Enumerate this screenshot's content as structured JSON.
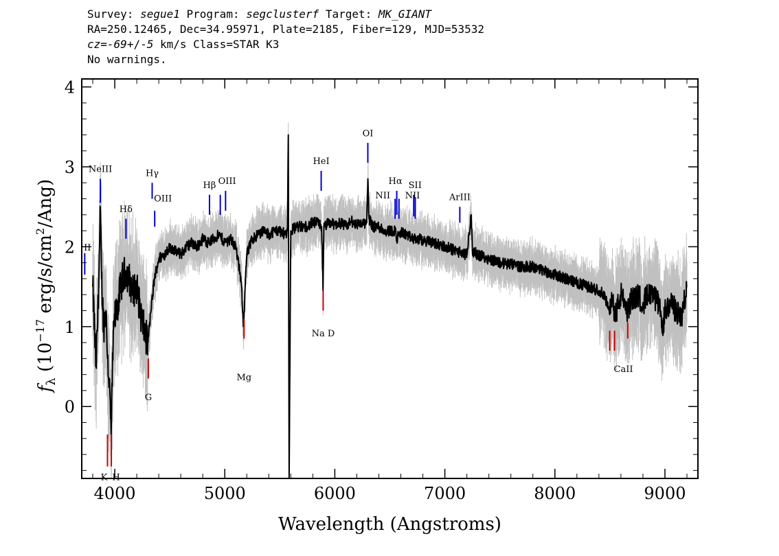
{
  "header": {
    "line1": {
      "survey_label": "Survey:",
      "survey_value": "segue1",
      "program_label": "Program:",
      "program_value": "segclusterf",
      "target_label": "Target:",
      "target_value": "MK_GIANT"
    },
    "line2": "RA=250.12465, Dec=34.95971, Plate=2185, Fiber=129, MJD=53532",
    "line3": {
      "cz_label": "cz=",
      "cz_value": "-69",
      "cz_pm": "+/-",
      "cz_err": "5",
      "cz_rest": " km/s Class=STAR K3"
    },
    "line4": "No warnings."
  },
  "chart_data": {
    "type": "line",
    "xlabel": "Wavelength (Angstroms)",
    "ylabel": "f_λ (10^-17 erg/s/cm^2/Ang)",
    "xlim": [
      3700,
      9300
    ],
    "ylim": [
      -0.9,
      4.1
    ],
    "x_ticks": [
      4000,
      5000,
      6000,
      7000,
      8000,
      9000
    ],
    "y_ticks": [
      0,
      1,
      2,
      3,
      4
    ],
    "series": [
      {
        "role": "flux",
        "color": "#000000",
        "x": [
          3800,
          3830,
          3850,
          3870,
          3880,
          3900,
          3920,
          3935,
          3950,
          3968,
          3985,
          4000,
          4030,
          4060,
          4100,
          4130,
          4160,
          4200,
          4230,
          4260,
          4300,
          4330,
          4360,
          4400,
          4450,
          4500,
          4550,
          4600,
          4650,
          4700,
          4750,
          4800,
          4850,
          4900,
          4950,
          5000,
          5050,
          5100,
          5150,
          5170,
          5185,
          5200,
          5250,
          5300,
          5350,
          5400,
          5450,
          5500,
          5550,
          5570,
          5577,
          5585,
          5600,
          5650,
          5700,
          5750,
          5800,
          5850,
          5880,
          5893,
          5900,
          5950,
          6000,
          6050,
          6100,
          6150,
          6200,
          6250,
          6290,
          6300,
          6310,
          6350,
          6400,
          6450,
          6500,
          6550,
          6563,
          6600,
          6650,
          6700,
          6750,
          6800,
          6900,
          7000,
          7100,
          7200,
          7240,
          7250,
          7300,
          7400,
          7500,
          7600,
          7700,
          7800,
          7900,
          8000,
          8100,
          8200,
          8300,
          8400,
          8450,
          8498,
          8530,
          8542,
          8600,
          8662,
          8700,
          8750,
          8800,
          8850,
          8900,
          8950,
          8980,
          9000,
          9050,
          9100,
          9150,
          9200
        ],
        "y": [
          1.5,
          0.5,
          1.3,
          2.45,
          1.6,
          1.0,
          1.2,
          0.6,
          0.3,
          -0.35,
          0.8,
          1.1,
          1.3,
          1.55,
          1.7,
          1.6,
          1.45,
          1.5,
          1.2,
          1.0,
          0.8,
          1.2,
          1.6,
          1.85,
          1.9,
          2.0,
          1.95,
          1.9,
          2.0,
          2.05,
          2.0,
          2.1,
          2.05,
          2.1,
          2.15,
          2.05,
          2.1,
          2.0,
          1.55,
          1.0,
          1.5,
          1.9,
          2.1,
          2.15,
          2.2,
          2.15,
          2.2,
          2.2,
          2.15,
          2.2,
          3.4,
          -0.9,
          2.2,
          2.25,
          2.25,
          2.25,
          2.3,
          2.3,
          2.25,
          1.45,
          2.25,
          2.3,
          2.28,
          2.3,
          2.25,
          2.32,
          2.28,
          2.3,
          2.3,
          2.85,
          2.35,
          2.25,
          2.25,
          2.2,
          2.2,
          2.2,
          2.1,
          2.18,
          2.15,
          2.1,
          2.1,
          2.08,
          2.05,
          2.0,
          1.95,
          1.9,
          2.4,
          1.95,
          1.9,
          1.85,
          1.8,
          1.78,
          1.75,
          1.75,
          1.7,
          1.65,
          1.6,
          1.55,
          1.5,
          1.45,
          1.4,
          1.15,
          1.4,
          1.1,
          1.4,
          1.2,
          1.35,
          1.4,
          1.3,
          1.4,
          1.35,
          1.3,
          0.9,
          1.2,
          1.3,
          1.2,
          1.1,
          1.5
        ]
      }
    ],
    "line_labels": [
      {
        "label": "II",
        "group": "emission",
        "x": 3727,
        "color": "#0000cc"
      },
      {
        "label": "NeIII",
        "group": "emission",
        "x": 3869,
        "color": "#0000cc"
      },
      {
        "label": "Hδ",
        "group": "emission",
        "x": 4102,
        "color": "#0000cc"
      },
      {
        "label": "Hγ",
        "group": "emission",
        "x": 4340,
        "color": "#0000cc"
      },
      {
        "label": "OIII",
        "group": "emission",
        "x": 4363,
        "color": "#0000cc"
      },
      {
        "label": "Hβ",
        "group": "emission",
        "x": 4861,
        "color": "#0000cc"
      },
      {
        "label": "OIII",
        "group": "emission",
        "x": 4959,
        "color": "#0000cc"
      },
      {
        "label": "",
        "group": "emission",
        "x": 5007,
        "color": "#0000cc"
      },
      {
        "label": "HeI",
        "group": "emission",
        "x": 5876,
        "color": "#0000cc"
      },
      {
        "label": "OI",
        "group": "emission",
        "x": 6300,
        "color": "#0000cc"
      },
      {
        "label": "NII",
        "group": "emission",
        "x": 6548,
        "color": "#0000cc"
      },
      {
        "label": "Hα",
        "group": "emission",
        "x": 6563,
        "color": "#0000cc"
      },
      {
        "label": "",
        "group": "emission",
        "x": 6583,
        "color": "#0000cc"
      },
      {
        "label": "SII",
        "group": "emission",
        "x": 6717,
        "color": "#0000cc"
      },
      {
        "label": "NII",
        "group": "emission",
        "x": 6731,
        "color": "#0000cc"
      },
      {
        "label": "ArIII",
        "group": "emission",
        "x": 7136,
        "color": "#0000cc"
      },
      {
        "label": "K",
        "group": "absorption",
        "x": 3934,
        "color": "#cc0000"
      },
      {
        "label": "H",
        "group": "absorption",
        "x": 3969,
        "color": "#cc0000"
      },
      {
        "label": "G",
        "group": "absorption",
        "x": 4305,
        "color": "#cc0000"
      },
      {
        "label": "Mg",
        "group": "absorption",
        "x": 5175,
        "color": "#cc0000"
      },
      {
        "label": "Na D",
        "group": "absorption",
        "x": 5894,
        "color": "#cc0000"
      },
      {
        "label": "CaII",
        "group": "absorption",
        "x": 8498,
        "color": "#cc0000"
      },
      {
        "label": "",
        "group": "absorption",
        "x": 8542,
        "color": "#cc0000"
      },
      {
        "label": "",
        "group": "absorption",
        "x": 8662,
        "color": "#cc0000"
      }
    ],
    "error_band_color": "#c0c0c0",
    "grid": false
  }
}
